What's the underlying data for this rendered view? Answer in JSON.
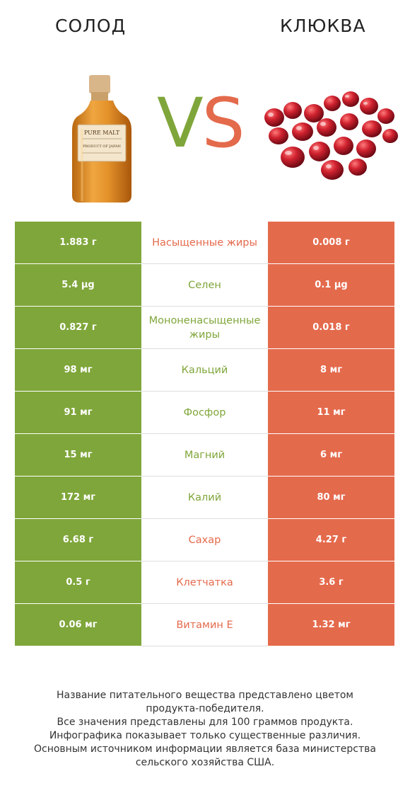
{
  "header": {
    "left_title": "СОЛОД",
    "right_title": "КЛЮКВА",
    "vs_v": "V",
    "vs_s": "S",
    "bottle_label_line1": "PURE MALT",
    "bottle_label_line2": "PRODUCT OF JAPAN"
  },
  "colors": {
    "left": "#7fa63a",
    "right": "#e46a4c"
  },
  "rows": [
    {
      "left": "1.883 г",
      "name": "Насыщенные жиры",
      "right": "0.008 г",
      "winner": "right"
    },
    {
      "left": "5.4 µg",
      "name": "Селен",
      "right": "0.1 µg",
      "winner": "left"
    },
    {
      "left": "0.827 г",
      "name": "Мононенасыщенные жиры",
      "right": "0.018 г",
      "winner": "left"
    },
    {
      "left": "98 мг",
      "name": "Кальций",
      "right": "8 мг",
      "winner": "left"
    },
    {
      "left": "91 мг",
      "name": "Фосфор",
      "right": "11 мг",
      "winner": "left"
    },
    {
      "left": "15 мг",
      "name": "Магний",
      "right": "6 мг",
      "winner": "left"
    },
    {
      "left": "172 мг",
      "name": "Калий",
      "right": "80 мг",
      "winner": "left"
    },
    {
      "left": "6.68 г",
      "name": "Сахар",
      "right": "4.27 г",
      "winner": "right"
    },
    {
      "left": "0.5 г",
      "name": "Клетчатка",
      "right": "3.6 г",
      "winner": "right"
    },
    {
      "left": "0.06 мг",
      "name": "Витамин E",
      "right": "1.32 мг",
      "winner": "right"
    }
  ],
  "footer": [
    "Название питательного вещества представлено цветом",
    "продукта-победителя.",
    "Все значения представлены для 100 граммов продукта.",
    "Инфографика показывает только существенные различия.",
    "Основным источником информации является база министерства",
    "сельского хозяйства США."
  ]
}
